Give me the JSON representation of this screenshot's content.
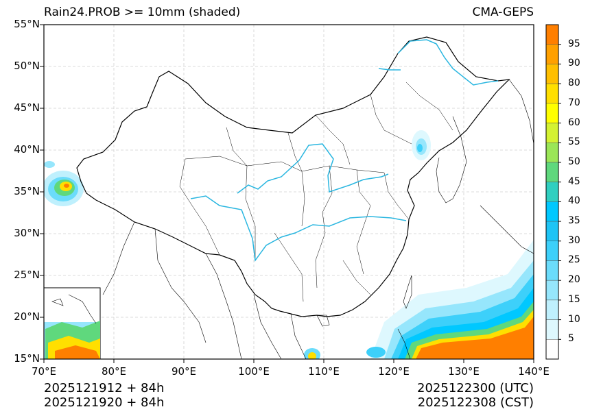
{
  "title_left": "Rain24.PROB >= 10mm (shaded)",
  "title_right": "CMA-GEPS",
  "lat_labels": [
    "55°N",
    "50°N",
    "45°N",
    "40°N",
    "35°N",
    "30°N",
    "25°N",
    "20°N",
    "15°N"
  ],
  "lon_labels": [
    "70°E",
    "80°E",
    "90°E",
    "100°E",
    "110°E",
    "120°E",
    "130°E",
    "140°E"
  ],
  "footer": {
    "init_utc": "2025121912 + 84h",
    "init_cst": "2025121920 + 84h",
    "valid_utc": "2025122300 (UTC)",
    "valid_cst": "2025122308 (CST)"
  },
  "colorbar": {
    "labels": [
      "95",
      "90",
      "80",
      "70",
      "60",
      "55",
      "50",
      "45",
      "40",
      "35",
      "30",
      "25",
      "20",
      "15",
      "10",
      "5"
    ],
    "colors": [
      "#ff7f00",
      "#ffa000",
      "#ffbf00",
      "#ffdf00",
      "#ffff00",
      "#d4f232",
      "#9be657",
      "#5fd87d",
      "#30cfc0",
      "#00c8ff",
      "#1ec4f5",
      "#3dd0fa",
      "#6bdcfb",
      "#96e6fc",
      "#bff0fd",
      "#def8fe",
      "#ffffff"
    ]
  },
  "colors": {
    "river": "#29b6e0",
    "border": "#000000",
    "grid": "#cfcfcf"
  }
}
